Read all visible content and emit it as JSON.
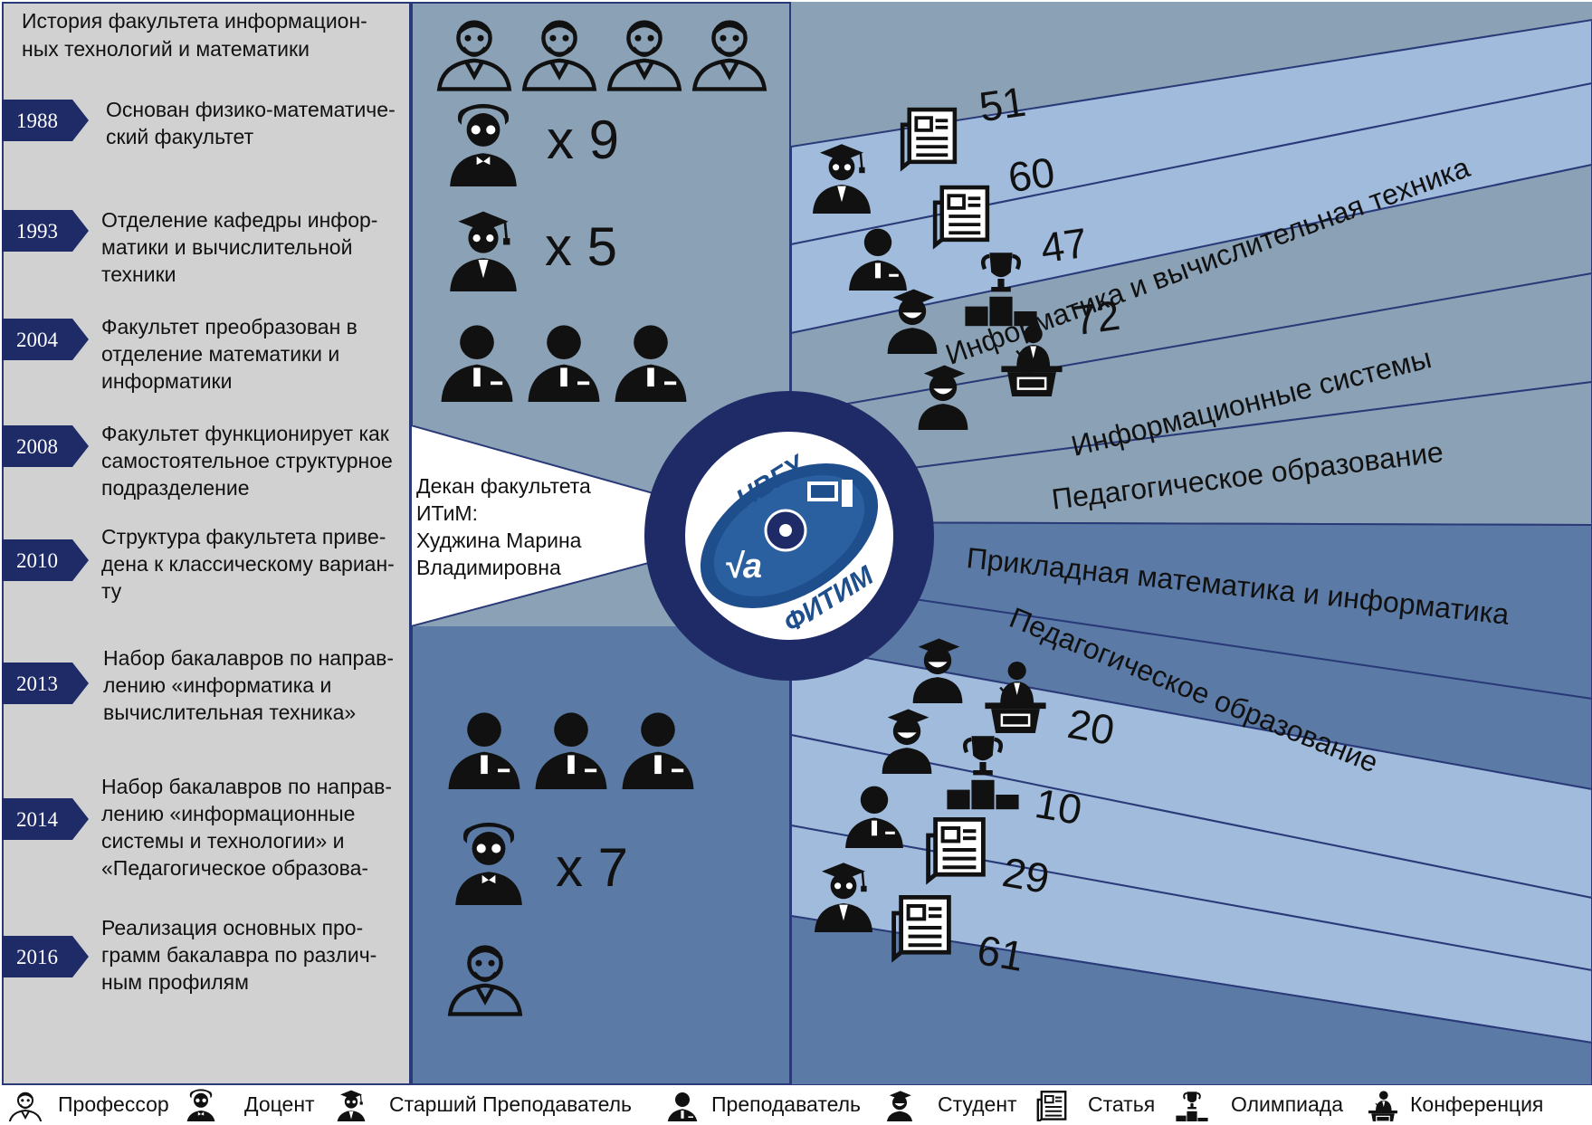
{
  "history": {
    "title": "История факультета информацион-ных технологий и математики",
    "events": [
      {
        "year": "1988",
        "text": "Основан физико-математиче-ский факультет"
      },
      {
        "year": "1993",
        "text": "Отделение кафедры инфор-матики и вычислительной техники"
      },
      {
        "year": "2004",
        "text": "Факультет преобразован в отделение математики и информатики"
      },
      {
        "year": "2008",
        "text": "Факультет функционирует как самостоятельное структурное подразделение"
      },
      {
        "year": "2010",
        "text": "Структура факультета приве-дена к классическому вариан-ту"
      },
      {
        "year": "2013",
        "text": "Набор бакалавров по направ-лению «информатика и вычислительная техника»"
      },
      {
        "year": "2014",
        "text": "Набор бакалавров по направ-лению «информационные системы и технологии» и «Педагогическое образова-"
      },
      {
        "year": "2016",
        "text": "Реализация основных про-грамм бакалавра по различ-ным профилям"
      }
    ]
  },
  "staff_top": {
    "docent_count": "x 9",
    "senior_teacher_count": "x 5",
    "professor_icons": 4,
    "teacher_icons": 3
  },
  "staff_bottom": {
    "docent_count": "x 7",
    "teacher_icons": 3,
    "professor_icons": 1
  },
  "dean": {
    "title": "Декан факультета ИТиМ:",
    "name": "Худжина Марина Владимировна"
  },
  "logo": {
    "top_text": "НВГУ",
    "bottom_text": "ФИТИМ"
  },
  "top_stats": [
    {
      "value": "51",
      "icon": "article-icon",
      "group": "senior-teacher-icon"
    },
    {
      "value": "60",
      "icon": "article-icon",
      "group": "teacher-icon"
    },
    {
      "value": "47",
      "icon": "olympiad-icon",
      "group": "student-icon"
    },
    {
      "value": "72",
      "icon": "conference-icon",
      "group": "student-icon"
    }
  ],
  "top_programs": [
    "Информатика и вычислительная техника",
    "Информационные системы",
    "Педагогическое  образование"
  ],
  "bottom_programs": [
    "Прикладная математика и информатика",
    "Педагогическое образование"
  ],
  "bottom_stats": [
    {
      "value": "20",
      "icon": "conference-icon",
      "group": "student-icon"
    },
    {
      "value": "10",
      "icon": "olympiad-icon",
      "group": "student-icon"
    },
    {
      "value": "29",
      "icon": "article-icon",
      "group": "teacher-icon"
    },
    {
      "value": "61",
      "icon": "article-icon",
      "group": "senior-teacher-icon"
    }
  ],
  "legend": [
    {
      "icon": "professor-icon",
      "label": "Профессор"
    },
    {
      "icon": "docent-icon",
      "label": "Доцент"
    },
    {
      "icon": "senior-teacher-icon",
      "label": "Старший Преподаватель"
    },
    {
      "icon": "teacher-icon",
      "label": "Преподаватель"
    },
    {
      "icon": "student-icon",
      "label": "Студент"
    },
    {
      "icon": "article-icon",
      "label": "Статья"
    },
    {
      "icon": "olympiad-icon",
      "label": "Олимпиада"
    },
    {
      "icon": "conference-icon",
      "label": "Конференция"
    }
  ],
  "colors": {
    "navy": "#1f2b66",
    "grey_panel": "#d1d1d1",
    "mid_top": "#8ba2b6",
    "mid_bottom": "#5b7ba6",
    "light_blue": "#a0bbdc",
    "slate": "#8ba2b6"
  }
}
